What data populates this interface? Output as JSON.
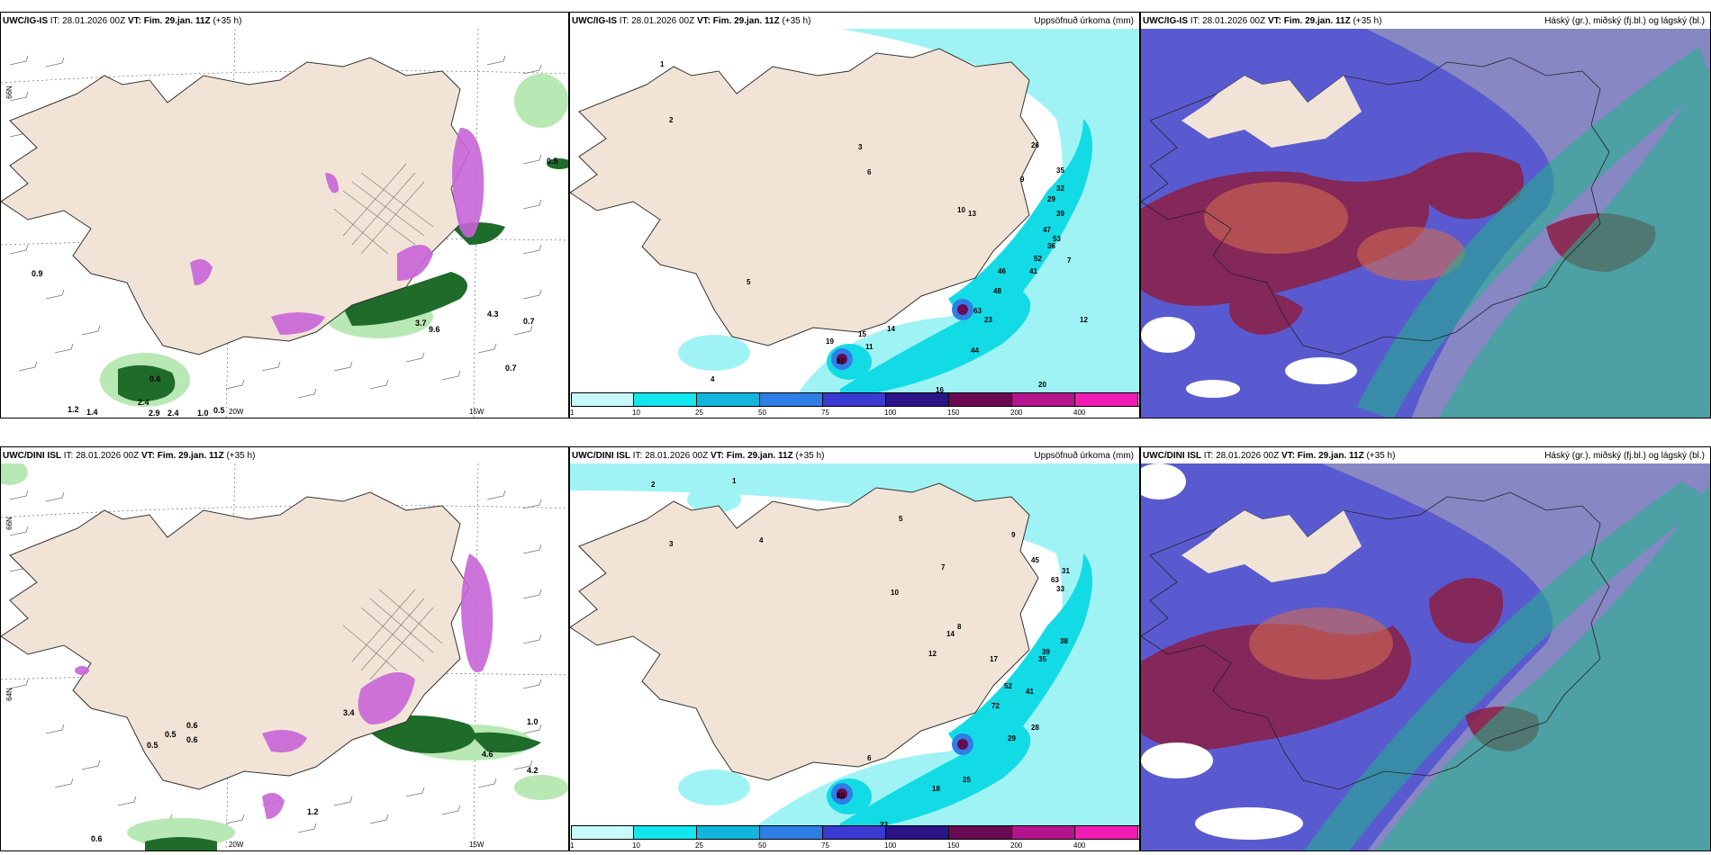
{
  "colors": {
    "land": "#f1e4d6",
    "ocean_cyan": "#9ff3f5",
    "precip_mid": "#12dbe6",
    "precip_dark": "#1aa6d6",
    "snow_purple": "#c864d8",
    "green_dark": "#1f6b2a",
    "green_light": "#b8e8b4",
    "cloud_high": "#4f4fc8",
    "cloud_mid": "#8c1f45",
    "cloud_low": "#1fb68a"
  },
  "panels": {
    "p1": {
      "model": "UWC/IG-IS",
      "it": "IT: 28.01.2026 00Z",
      "vt_label": "VT:",
      "vt": "Fim. 29.jan. 11Z",
      "lead": "(+35 h)",
      "title_right": ""
    },
    "p2": {
      "model": "UWC/IG-IS",
      "it": "IT: 28.01.2026 00Z",
      "vt_label": "VT:",
      "vt": "Fim. 29.jan. 11Z",
      "lead": "(+35 h)",
      "title_right": "Uppsöfnuð úrkoma (mm)"
    },
    "p3": {
      "model": "UWC/IG-IS",
      "it": "IT: 28.01.2026 00Z",
      "vt_label": "VT:",
      "vt": "Fim. 29.jan. 11Z",
      "lead": "(+35 h)",
      "title_right": "Háský (gr.), miðský (fj.bl.) og lágský (bl.)"
    },
    "p4": {
      "model": "UWC/DINI ISL",
      "it": "IT: 28.01.2026 00Z",
      "vt_label": "VT:",
      "vt": "Fim. 29.jan. 11Z",
      "lead": "(+35 h)",
      "title_right": ""
    },
    "p5": {
      "model": "UWC/DINI ISL",
      "it": "IT: 28.01.2026 00Z",
      "vt_label": "VT:",
      "vt": "Fim. 29.jan. 11Z",
      "lead": "(+35 h)",
      "title_right": "Uppsöfnuð úrkoma (mm)"
    },
    "p6": {
      "model": "UWC/DINI ISL",
      "it": "IT: 28.01.2026 00Z",
      "vt_label": "VT:",
      "vt": "Fim. 29.jan. 11Z",
      "lead": "(+35 h)",
      "title_right": "Háský (gr.), miðský (fj.bl.) og lágský (bl.)"
    }
  },
  "axis_labels": {
    "lon20": "20W",
    "lon15": "15W",
    "lat66": "66N",
    "lat64": "64N",
    "lat65": "65N"
  },
  "colorbar": {
    "labels": [
      "1",
      "10",
      "25",
      "50",
      "75",
      "100",
      "150",
      "200",
      "400"
    ],
    "colors": [
      "#c8fafc",
      "#12e6ee",
      "#12b6dc",
      "#2e7ee6",
      "#3a3ad2",
      "#2a1488",
      "#6a0a52",
      "#b4148c",
      "#f01cb4",
      "#f4b4f0"
    ]
  },
  "p1_values": [
    "0.5",
    "0.9",
    "0.6",
    "0.7",
    "0.7",
    "9.6",
    "2.4",
    "2.9",
    "2.4",
    "1.0",
    "0.5",
    "1.2",
    "1.4",
    "3.7",
    "4.3"
  ],
  "p2_values": [
    "1",
    "2",
    "3",
    "4",
    "5",
    "6",
    "7",
    "9",
    "10",
    "11",
    "12",
    "13",
    "14",
    "15",
    "16",
    "19",
    "20",
    "23",
    "26",
    "29",
    "32",
    "35",
    "36",
    "39",
    "41",
    "44",
    "46",
    "47",
    "48",
    "52",
    "53",
    "63",
    "87"
  ],
  "p4_values": [
    "0.6",
    "0.5",
    "0.6",
    "0.5",
    "1.0",
    "1.2",
    "4.6",
    "4.2",
    "3.4"
  ],
  "p5_values": [
    "1",
    "2",
    "3",
    "4",
    "5",
    "6",
    "7",
    "8",
    "9",
    "10",
    "12",
    "14",
    "17",
    "18",
    "25",
    "28",
    "29",
    "31",
    "33",
    "35",
    "38",
    "39",
    "41",
    "45",
    "52",
    "63",
    "72",
    "88",
    "23"
  ]
}
